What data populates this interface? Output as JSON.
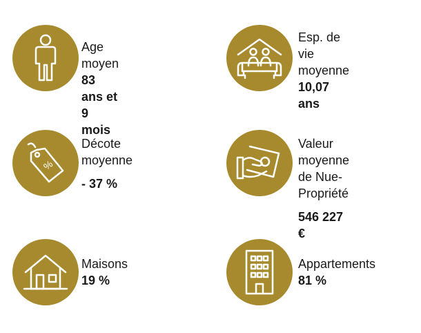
{
  "colors": {
    "gold": "#a88a2e",
    "text": "#1a1a1a"
  },
  "stats": [
    {
      "icon": "person-icon",
      "label_lines": [
        "Age moyen"
      ],
      "value": "83 ans et 9 mois"
    },
    {
      "icon": "seniors-house-icon",
      "label_lines": [
        "Esp. de vie",
        "moyenne"
      ],
      "value": "10,07 ans"
    },
    {
      "icon": "discount-tag-icon",
      "label_lines": [
        "Décote",
        "moyenne"
      ],
      "value": "- 37 %",
      "tag_text": "%"
    },
    {
      "icon": "money-hand-icon",
      "label_lines": [
        "Valeur moyenne",
        "de Nue-Propriété"
      ],
      "value": "546 227 €"
    },
    {
      "icon": "house-icon",
      "label_lines": [
        "Maisons"
      ],
      "value": "19 %"
    },
    {
      "icon": "apartment-building-icon",
      "label_lines": [
        "Appartements"
      ],
      "value": "81 %"
    }
  ]
}
